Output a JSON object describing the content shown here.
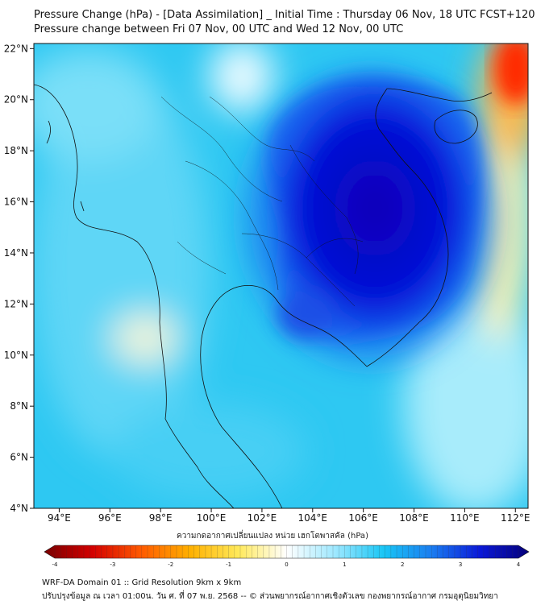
{
  "title_line1": "Pressure Change (hPa) - [Data Assimilation] _ Initial Time : Thursday 06 Nov, 18 UTC FCST+120",
  "title_line2": "Pressure change between Fri 07 Nov, 00 UTC and Wed 12 Nov, 00 UTC",
  "colorbar_caption": "ความกดอากาศเปลี่ยนแปลง หน่วย เฮกโตพาสคัล (hPa)",
  "footer_line1": "WRF-DA Domain 01 :: Grid Resolution 9km x 9km",
  "footer_line2": "ปรับปรุงข้อมูล ณ เวลา 01:00น. วัน ศ. ที่ 07 พ.ย. 2568 -- © ส่วนพยากรณ์อากาศเชิงตัวเลข กองพยากรณ์อากาศ กรมอุตุนิยมวิทยา",
  "chart_data": {
    "type": "heatmap",
    "variable": "Pressure change (hPa)",
    "x_axis": {
      "range": [
        93,
        112.5
      ],
      "ticks": [
        94,
        96,
        98,
        100,
        102,
        104,
        106,
        108,
        110,
        112
      ],
      "tick_labels": [
        "94°E",
        "96°E",
        "98°E",
        "100°E",
        "102°E",
        "104°E",
        "106°E",
        "108°E",
        "110°E",
        "112°E"
      ]
    },
    "y_axis": {
      "range": [
        4,
        22.2
      ],
      "ticks": [
        4,
        6,
        8,
        10,
        12,
        14,
        16,
        18,
        20,
        22
      ],
      "tick_labels": [
        "4°N",
        "6°N",
        "8°N",
        "10°N",
        "12°N",
        "14°N",
        "16°N",
        "18°N",
        "20°N",
        "22°N"
      ]
    },
    "colorbar": {
      "range": [
        -4,
        4
      ],
      "ticks": [
        -4,
        -3,
        -2,
        -1,
        0,
        1,
        2,
        3,
        4
      ],
      "tick_labels": [
        "-4",
        "-3",
        "-2",
        "-1",
        "0",
        "1",
        "2",
        "3",
        "4"
      ],
      "colors": [
        "#7a0000",
        "#d40000",
        "#ff5a00",
        "#ffb000",
        "#ffe95a",
        "#ffffff",
        "#9ee8ff",
        "#19c6f5",
        "#1a7cf0",
        "#0a18d8",
        "#05007a"
      ]
    },
    "field_features": [
      {
        "name": "strong pressure rise center",
        "lon": 106.5,
        "lat": 15.5,
        "value_hpa": 3.8
      },
      {
        "name": "pressure fall corner",
        "lon": 112.3,
        "lat": 21.6,
        "value_hpa": -3.5
      },
      {
        "name": "neutral band",
        "lon": 110.8,
        "lat": 17.0,
        "value_hpa": -0.2
      }
    ]
  }
}
